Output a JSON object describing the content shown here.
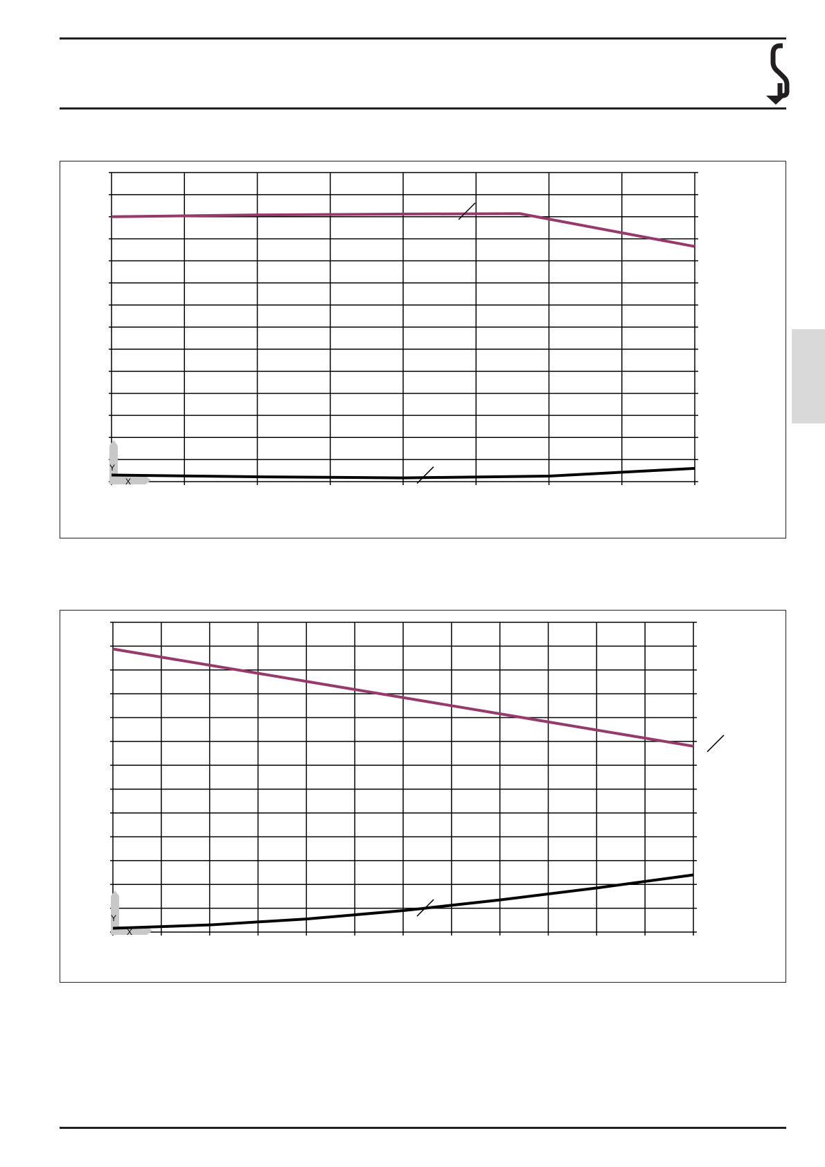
{
  "header": {
    "logo_icon": "s-arrow-down-logo"
  },
  "side_tab": {
    "color": "#d9d9d9"
  },
  "colors": {
    "upper_curve": "#953a6a",
    "lower_curve": "#000000",
    "grid": "#000000",
    "axis_marker": "#c8c8c8"
  },
  "chart_data": [
    {
      "type": "line",
      "title": "",
      "xlabel": "",
      "ylabel": "",
      "grid": true,
      "axis_marker": {
        "x": "X",
        "y": "Y"
      },
      "xlim": [
        0,
        8
      ],
      "ylim": [
        0,
        14
      ],
      "x_divisions": 8,
      "y_divisions": 14,
      "series": [
        {
          "color": "#953a6a",
          "x": [
            0,
            2,
            4,
            5.6,
            8
          ],
          "y": [
            12.0,
            12.08,
            12.12,
            12.14,
            10.65
          ]
        },
        {
          "color": "#000000",
          "x": [
            0,
            2,
            4,
            6,
            8
          ],
          "y": [
            0.3,
            0.22,
            0.17,
            0.25,
            0.6
          ]
        }
      ]
    },
    {
      "type": "line",
      "title": "",
      "xlabel": "",
      "ylabel": "",
      "grid": true,
      "axis_marker": {
        "x": "X",
        "y": "Y"
      },
      "xlim": [
        0,
        12
      ],
      "ylim": [
        0,
        13
      ],
      "x_divisions": 12,
      "y_divisions": 13,
      "series": [
        {
          "color": "#953a6a",
          "x": [
            0,
            12
          ],
          "y": [
            11.88,
            7.8
          ]
        },
        {
          "color": "#000000",
          "x": [
            0,
            2,
            4,
            6,
            8,
            10,
            12
          ],
          "y": [
            0.16,
            0.3,
            0.55,
            0.9,
            1.35,
            1.85,
            2.4
          ]
        }
      ]
    }
  ]
}
